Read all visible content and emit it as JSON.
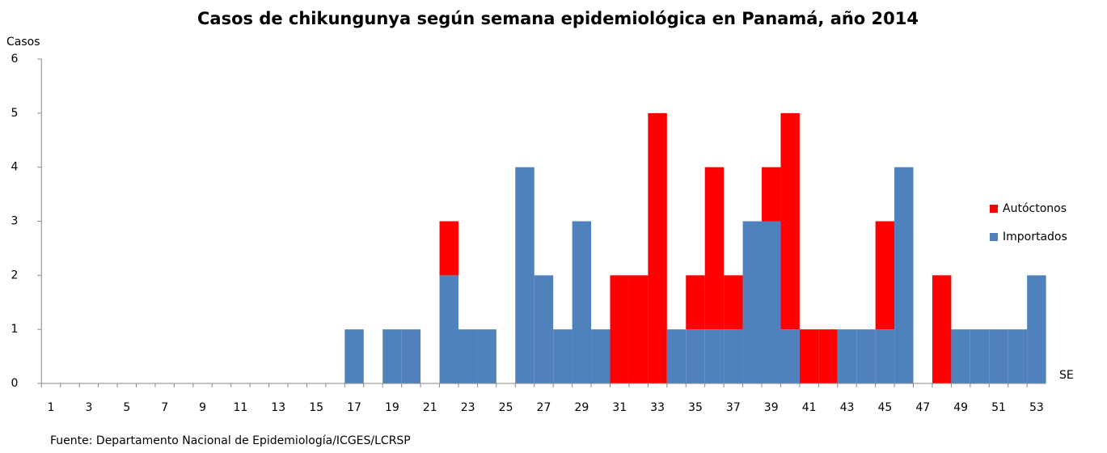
{
  "chart_data": {
    "type": "stacked_bar",
    "title": "Casos de chikungunya según semana epidemiológica en Panamá, año 2014",
    "y_label": "Casos",
    "x_label": "SE",
    "source": "Fuente: Departamento  Nacional de Epidemiología/ICGES/LCRSP",
    "categories": [
      "1",
      null,
      "3",
      null,
      "5",
      null,
      "7",
      null,
      "9",
      null,
      "11",
      null,
      "13",
      null,
      "15",
      null,
      "17",
      null,
      "19",
      null,
      "21",
      null,
      "23",
      null,
      "25",
      null,
      "27",
      null,
      "29",
      null,
      "31",
      null,
      "33",
      null,
      "35",
      null,
      "37",
      null,
      "39",
      null,
      "41",
      null,
      "43",
      null,
      "45",
      null,
      "47",
      null,
      "49",
      null,
      "51",
      null,
      "53"
    ],
    "series": [
      {
        "name": "Importados",
        "color": "#4f81bd",
        "values": [
          0,
          0,
          0,
          0,
          0,
          0,
          0,
          0,
          0,
          0,
          0,
          0,
          0,
          0,
          0,
          0,
          1,
          0,
          1,
          1,
          0,
          2,
          1,
          1,
          0,
          4,
          2,
          1,
          3,
          1,
          0,
          0,
          0,
          1,
          1,
          1,
          1,
          3,
          3,
          1,
          0,
          0,
          1,
          1,
          1,
          4,
          0,
          0,
          1,
          1,
          1,
          1,
          2
        ]
      },
      {
        "name": "Autóctonos",
        "color": "#ff0000",
        "values": [
          0,
          0,
          0,
          0,
          0,
          0,
          0,
          0,
          0,
          0,
          0,
          0,
          0,
          0,
          0,
          0,
          0,
          0,
          0,
          0,
          0,
          1,
          0,
          0,
          0,
          0,
          0,
          0,
          0,
          0,
          2,
          2,
          5,
          0,
          1,
          3,
          1,
          0,
          1,
          4,
          1,
          1,
          0,
          0,
          2,
          0,
          0,
          2,
          0,
          0,
          0,
          0,
          0
        ]
      }
    ],
    "legend_order": [
      "Autóctonos",
      "Importados"
    ],
    "ylim": [
      0,
      6
    ],
    "yticks": [
      0,
      1,
      2,
      3,
      4,
      5,
      6
    ],
    "grid": false
  }
}
